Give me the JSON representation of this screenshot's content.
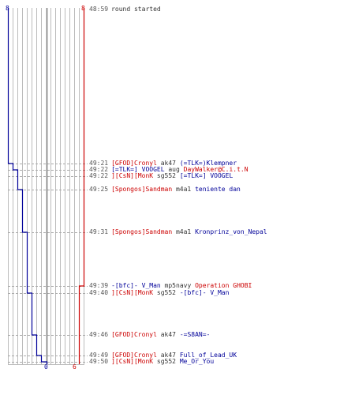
{
  "colors": {
    "red_team": "#cc0000",
    "blue_team": "#000099",
    "timestamp": "#555555",
    "gridline": "#bbbbbb",
    "zero_line": "#777777",
    "guide_dash": "#aaaaaa"
  },
  "axis": {
    "blue_start": "8",
    "red_start": "8",
    "blue_end": "0",
    "red_end": "6"
  },
  "round_start": {
    "time": "48:59",
    "text": "round started"
  },
  "events": [
    {
      "time": "49:21",
      "killer": "[GFOD]Cronyl",
      "killer_team": "red",
      "weapon": "ak47",
      "victim": "(=TLK=)Klempner",
      "victim_team": "blue"
    },
    {
      "time": "49:22",
      "killer": "[=TLK=] VOOGEL",
      "killer_team": "blue",
      "weapon": "aug",
      "victim": "DayWalker@C.i.t.N",
      "victim_team": "red"
    },
    {
      "time": "49:22",
      "killer": "][CsN][MonK",
      "killer_team": "red",
      "weapon": "sg552",
      "victim": "[=TLK=] VOOGEL",
      "victim_team": "blue"
    },
    {
      "time": "49:25",
      "killer": "[Spongos]Sandman",
      "killer_team": "red",
      "weapon": "m4a1",
      "victim": "teniente dan",
      "victim_team": "blue"
    },
    {
      "time": "49:31",
      "killer": "[Spongos]Sandman",
      "killer_team": "red",
      "weapon": "m4a1",
      "victim": "Kronprinz_von_Nepal",
      "victim_team": "blue"
    },
    {
      "time": "49:39",
      "killer": "-[bfc]- V_Man",
      "killer_team": "blue",
      "weapon": "mp5navy",
      "victim": "Operation GHOBI",
      "victim_team": "red"
    },
    {
      "time": "49:40",
      "killer": "][CsN][MonK",
      "killer_team": "red",
      "weapon": "sg552",
      "victim": "-[bfc]- V_Man",
      "victim_team": "blue"
    },
    {
      "time": "49:46",
      "killer": "[GFOD]Cronyl",
      "killer_team": "red",
      "weapon": "ak47",
      "victim": "-=S8AN=-",
      "victim_team": "blue"
    },
    {
      "time": "49:49",
      "killer": "[GFOD]Cronyl",
      "killer_team": "red",
      "weapon": "ak47",
      "victim": "Full_of_Lead_UK",
      "victim_team": "blue"
    },
    {
      "time": "49:50",
      "killer": "][CsN][MonK",
      "killer_team": "red",
      "weapon": "sg552",
      "victim": "Me_Or_You",
      "victim_team": "blue"
    }
  ]
}
